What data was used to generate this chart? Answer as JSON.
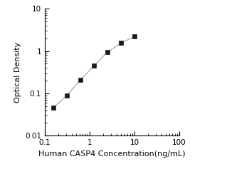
{
  "x_data": [
    0.156,
    0.313,
    0.625,
    1.25,
    2.5,
    5.0,
    10.0
  ],
  "y_data": [
    0.046,
    0.09,
    0.21,
    0.45,
    0.95,
    1.55,
    2.2
  ],
  "xlabel": "Human CASP4 Concentration(ng/mL)",
  "ylabel": "Optical Density",
  "xlim": [
    0.1,
    100
  ],
  "ylim": [
    0.01,
    10
  ],
  "line_color": "#b0b0b0",
  "marker_color": "#1a1a1a",
  "marker": "s",
  "marker_size": 4.5,
  "line_width": 1.0,
  "xlabel_fontsize": 8,
  "ylabel_fontsize": 8,
  "tick_fontsize": 7.5,
  "xticks": [
    0.1,
    1,
    10,
    100
  ],
  "yticks": [
    0.01,
    0.1,
    1,
    10
  ],
  "xtick_labels": [
    "0.1",
    "1",
    "10",
    "100"
  ],
  "ytick_labels": [
    "0.01",
    "0.1",
    "1",
    "10"
  ]
}
